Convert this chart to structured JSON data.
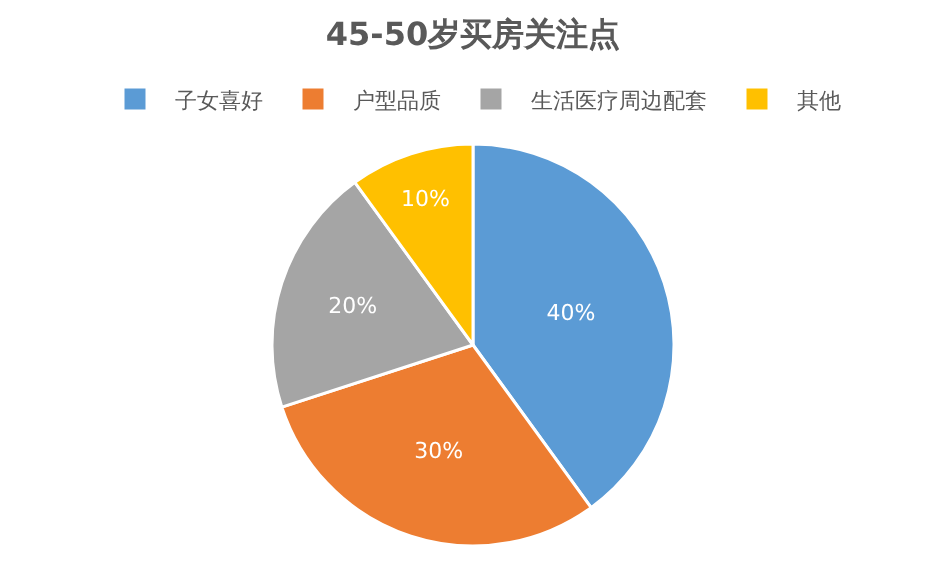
{
  "chart_data": {
    "type": "pie",
    "title": "45-50岁买房关注点",
    "categories": [
      "子女喜好",
      "户型品质",
      "生活医疗周边配套",
      "其他"
    ],
    "values": [
      40,
      30,
      20,
      10
    ],
    "colors": [
      "#5b9bd5",
      "#ed7d31",
      "#a5a5a5",
      "#ffc000"
    ],
    "value_labels": [
      "40%",
      "30%",
      "20%",
      "10%"
    ],
    "legend": "top"
  }
}
